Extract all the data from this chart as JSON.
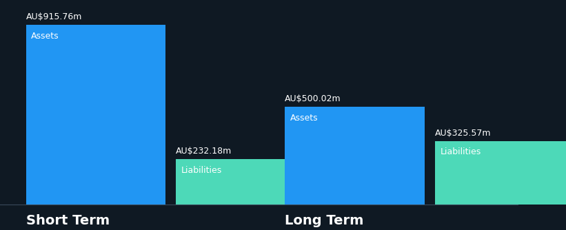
{
  "background_color": "#0f1923",
  "groups": [
    "Short Term",
    "Long Term"
  ],
  "assets": [
    915.76,
    500.02
  ],
  "liabilities": [
    232.18,
    325.57
  ],
  "asset_color": "#2196f3",
  "liability_color": "#4dd9b8",
  "label_color": "#ffffff",
  "value_color": "#ffffff",
  "group_label_color": "#ffffff",
  "max_val": 950,
  "group_label_fontsize": 14,
  "value_fontsize": 9,
  "bar_label_fontsize": 9,
  "line_color": "#3a4a5a"
}
